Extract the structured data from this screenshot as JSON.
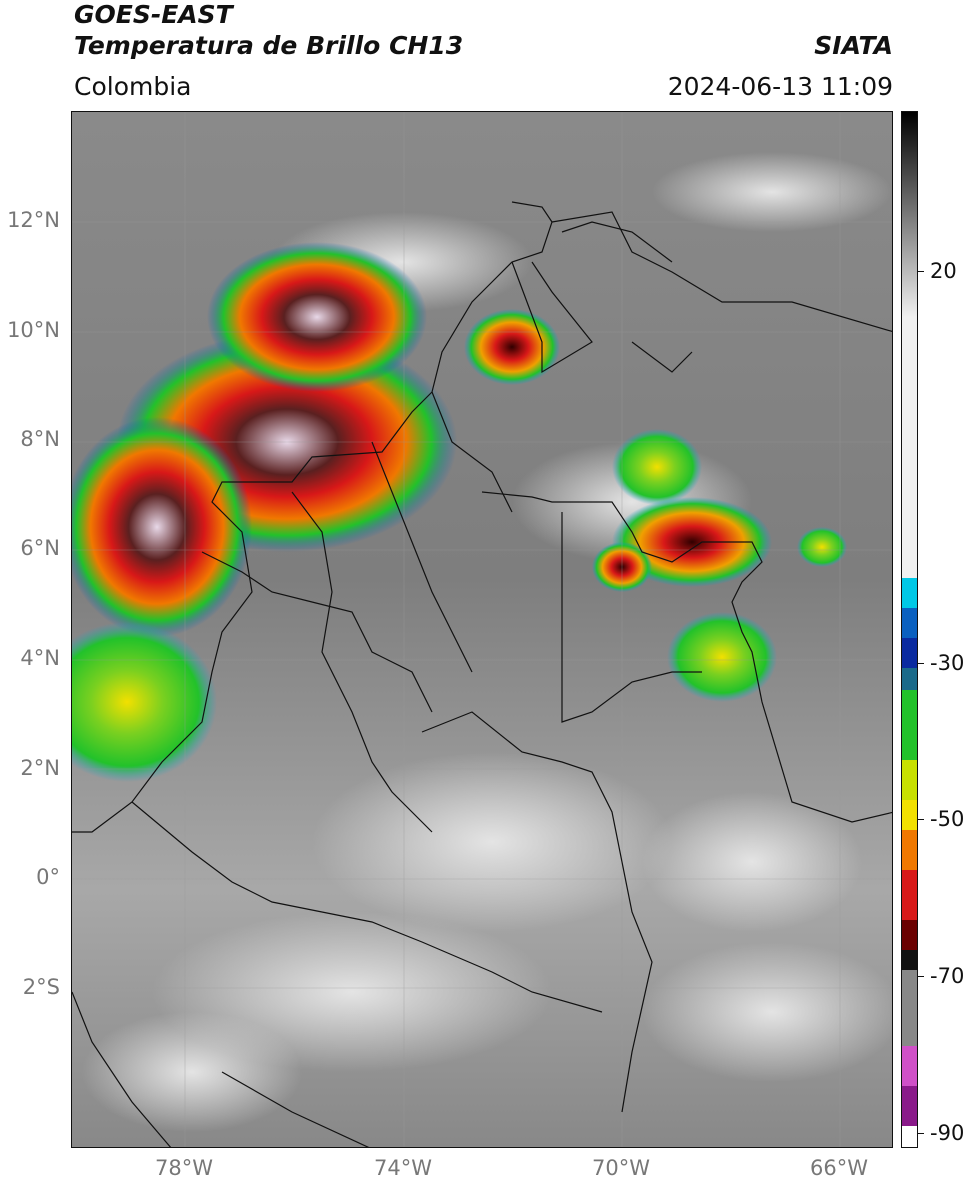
{
  "header": {
    "title_line1": "GOES-EAST",
    "title_line2": "Temperatura de Brillo CH13",
    "source": "SIATA",
    "region": "Colombia",
    "timestamp": "2024-06-13 11:09"
  },
  "map": {
    "lat_labels": [
      "12°N",
      "10°N",
      "8°N",
      "6°N",
      "4°N",
      "2°N",
      "0°",
      "2°S"
    ],
    "lon_labels": [
      "78°W",
      "74°W",
      "70°W",
      "66°W"
    ]
  },
  "colorbar": {
    "labels": [
      "20",
      "-30",
      "-50",
      "-70",
      "-90"
    ],
    "colors": {
      "cyan": "#00c8e6",
      "blue": "#0a2aa0",
      "green": "#22c22a",
      "yellow": "#f2e000",
      "orange": "#f07800",
      "red": "#d81818",
      "darkred": "#6a0000",
      "magenta": "#d050c8"
    }
  }
}
